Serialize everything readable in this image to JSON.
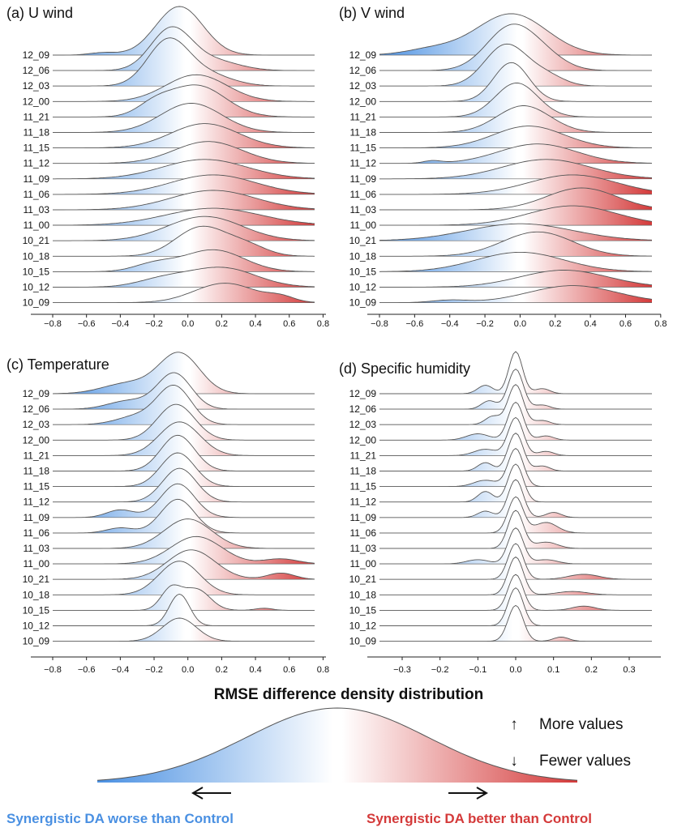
{
  "title": "RMSE difference density distribution",
  "colors": {
    "negative": "#4a90e2",
    "positive": "#d43a3a",
    "neutral": "#ffffff",
    "line": "#555555"
  },
  "chart_data": [
    {
      "panel": "a",
      "type": "ridgeline",
      "title": "(a) U wind",
      "categories": [
        "12_09",
        "12_06",
        "12_03",
        "12_00",
        "11_21",
        "11_18",
        "11_15",
        "11_12",
        "11_09",
        "11_06",
        "11_03",
        "11_00",
        "10_21",
        "10_18",
        "10_15",
        "10_12",
        "10_09"
      ],
      "xlim": [
        -0.8,
        0.75
      ],
      "xticks": [
        "−0.8",
        "−0.6",
        "−0.4",
        "−0.2",
        "0.0",
        "0.2",
        "0.4",
        "0.6",
        "0.8"
      ],
      "xtick_values": [
        -0.8,
        -0.6,
        -0.4,
        -0.2,
        0.0,
        0.2,
        0.4,
        0.6,
        0.8
      ],
      "series": [
        {
          "name": "12_09",
          "peaks": [
            [
              -0.05,
              0.14,
              1.0
            ],
            [
              -0.5,
              0.08,
              0.05
            ]
          ]
        },
        {
          "name": "12_06",
          "peaks": [
            [
              -0.1,
              0.12,
              0.85
            ],
            [
              0.15,
              0.15,
              0.2
            ]
          ]
        },
        {
          "name": "12_03",
          "peaks": [
            [
              -0.12,
              0.12,
              0.9
            ],
            [
              0.1,
              0.15,
              0.25
            ]
          ]
        },
        {
          "name": "12_00",
          "peaks": [
            [
              0.05,
              0.18,
              0.55
            ]
          ]
        },
        {
          "name": "11_21",
          "peaks": [
            [
              0.05,
              0.17,
              0.65
            ],
            [
              -0.2,
              0.1,
              0.2
            ]
          ]
        },
        {
          "name": "11_18",
          "peaks": [
            [
              0.02,
              0.18,
              0.6
            ]
          ]
        },
        {
          "name": "11_15",
          "peaks": [
            [
              0.1,
              0.2,
              0.5
            ]
          ]
        },
        {
          "name": "11_12",
          "peaks": [
            [
              0.12,
              0.2,
              0.45
            ]
          ]
        },
        {
          "name": "11_09",
          "peaks": [
            [
              0.1,
              0.25,
              0.4
            ]
          ]
        },
        {
          "name": "11_06",
          "peaks": [
            [
              0.15,
              0.25,
              0.4
            ]
          ]
        },
        {
          "name": "11_03",
          "peaks": [
            [
              0.15,
              0.25,
              0.4
            ]
          ]
        },
        {
          "name": "11_00",
          "peaks": [
            [
              0.15,
              0.28,
              0.35
            ]
          ]
        },
        {
          "name": "10_21",
          "peaks": [
            [
              0.1,
              0.22,
              0.5
            ]
          ]
        },
        {
          "name": "10_18",
          "peaks": [
            [
              0.08,
              0.15,
              0.6
            ],
            [
              0.35,
              0.12,
              0.2
            ]
          ]
        },
        {
          "name": "10_15",
          "peaks": [
            [
              0.15,
              0.18,
              0.45
            ],
            [
              -0.2,
              0.12,
              0.15
            ]
          ]
        },
        {
          "name": "10_12",
          "peaks": [
            [
              0.2,
              0.2,
              0.4
            ],
            [
              -0.15,
              0.15,
              0.15
            ]
          ]
        },
        {
          "name": "10_09",
          "peaks": [
            [
              0.22,
              0.18,
              0.4
            ],
            [
              0.55,
              0.08,
              0.1
            ]
          ]
        }
      ]
    },
    {
      "panel": "b",
      "type": "ridgeline",
      "title": "(b) V wind",
      "categories": [
        "12_09",
        "12_06",
        "12_03",
        "12_00",
        "11_21",
        "11_18",
        "11_15",
        "11_12",
        "11_09",
        "11_06",
        "11_03",
        "11_00",
        "10_21",
        "10_18",
        "10_15",
        "10_12",
        "10_09"
      ],
      "xlim": [
        -0.8,
        0.75
      ],
      "xticks": [
        "−0.8",
        "−0.6",
        "−0.4",
        "−0.2",
        "0.0",
        "0.2",
        "0.4",
        "0.6",
        "0.8"
      ],
      "xtick_values": [
        -0.8,
        -0.6,
        -0.4,
        -0.2,
        0.0,
        0.2,
        0.4,
        0.6,
        0.8
      ],
      "series": [
        {
          "name": "12_09",
          "peaks": [
            [
              -0.05,
              0.2,
              0.85
            ],
            [
              -0.5,
              0.15,
              0.12
            ]
          ]
        },
        {
          "name": "12_06",
          "peaks": [
            [
              -0.05,
              0.14,
              0.9
            ],
            [
              0.15,
              0.12,
              0.2
            ]
          ]
        },
        {
          "name": "12_03",
          "peaks": [
            [
              -0.08,
              0.12,
              0.85
            ],
            [
              0.15,
              0.1,
              0.2
            ]
          ]
        },
        {
          "name": "12_00",
          "peaks": [
            [
              -0.05,
              0.1,
              0.8
            ]
          ]
        },
        {
          "name": "11_21",
          "peaks": [
            [
              -0.02,
              0.12,
              0.7
            ]
          ]
        },
        {
          "name": "11_18",
          "peaks": [
            [
              0.02,
              0.15,
              0.55
            ]
          ]
        },
        {
          "name": "11_15",
          "peaks": [
            [
              0.05,
              0.2,
              0.45
            ]
          ]
        },
        {
          "name": "11_12",
          "peaks": [
            [
              0.1,
              0.22,
              0.4
            ],
            [
              -0.5,
              0.05,
              0.05
            ]
          ]
        },
        {
          "name": "11_09",
          "peaks": [
            [
              0.15,
              0.25,
              0.4
            ]
          ]
        },
        {
          "name": "11_06",
          "peaks": [
            [
              0.3,
              0.25,
              0.4
            ]
          ]
        },
        {
          "name": "11_03",
          "peaks": [
            [
              0.35,
              0.2,
              0.45
            ]
          ]
        },
        {
          "name": "11_00",
          "peaks": [
            [
              0.3,
              0.25,
              0.4
            ]
          ]
        },
        {
          "name": "10_21",
          "peaks": [
            [
              0.0,
              0.3,
              0.35
            ]
          ]
        },
        {
          "name": "10_18",
          "peaks": [
            [
              0.1,
              0.2,
              0.5
            ]
          ]
        },
        {
          "name": "10_15",
          "peaks": [
            [
              0.0,
              0.25,
              0.4
            ]
          ]
        },
        {
          "name": "10_12",
          "peaks": [
            [
              0.25,
              0.25,
              0.35
            ]
          ]
        },
        {
          "name": "10_09",
          "peaks": [
            [
              0.3,
              0.25,
              0.35
            ],
            [
              -0.4,
              0.1,
              0.05
            ]
          ]
        }
      ]
    },
    {
      "panel": "c",
      "type": "ridgeline",
      "title": "(c) Temperature",
      "categories": [
        "12_09",
        "12_06",
        "12_03",
        "12_00",
        "11_21",
        "11_18",
        "11_15",
        "11_12",
        "11_09",
        "11_06",
        "11_03",
        "11_00",
        "10_21",
        "10_18",
        "10_15",
        "10_12",
        "10_09"
      ],
      "xlim": [
        -0.8,
        0.75
      ],
      "xticks": [
        "−0.8",
        "−0.6",
        "−0.4",
        "−0.2",
        "0.0",
        "0.2",
        "0.4",
        "0.6",
        "0.8"
      ],
      "xtick_values": [
        -0.8,
        -0.6,
        -0.4,
        -0.2,
        0.0,
        0.2,
        0.4,
        0.6,
        0.8
      ],
      "series": [
        {
          "name": "12_09",
          "peaks": [
            [
              -0.05,
              0.12,
              0.95
            ],
            [
              -0.35,
              0.15,
              0.25
            ]
          ]
        },
        {
          "name": "12_06",
          "peaks": [
            [
              -0.08,
              0.1,
              0.85
            ],
            [
              -0.35,
              0.12,
              0.2
            ]
          ]
        },
        {
          "name": "12_03",
          "peaks": [
            [
              -0.08,
              0.1,
              0.9
            ],
            [
              -0.3,
              0.12,
              0.2
            ]
          ]
        },
        {
          "name": "12_00",
          "peaks": [
            [
              -0.07,
              0.11,
              0.85
            ]
          ]
        },
        {
          "name": "11_21",
          "peaks": [
            [
              -0.05,
              0.12,
              0.8
            ]
          ]
        },
        {
          "name": "11_18",
          "peaks": [
            [
              -0.06,
              0.1,
              0.85
            ]
          ]
        },
        {
          "name": "11_15",
          "peaks": [
            [
              -0.06,
              0.1,
              0.8
            ]
          ]
        },
        {
          "name": "11_12",
          "peaks": [
            [
              -0.05,
              0.1,
              0.8
            ]
          ]
        },
        {
          "name": "11_09",
          "peaks": [
            [
              -0.06,
              0.1,
              0.8
            ],
            [
              -0.4,
              0.08,
              0.18
            ]
          ]
        },
        {
          "name": "11_06",
          "peaks": [
            [
              -0.06,
              0.1,
              0.8
            ],
            [
              -0.4,
              0.08,
              0.12
            ]
          ]
        },
        {
          "name": "11_03",
          "peaks": [
            [
              0.0,
              0.14,
              0.7
            ]
          ]
        },
        {
          "name": "11_00",
          "peaks": [
            [
              0.05,
              0.15,
              0.65
            ],
            [
              0.55,
              0.1,
              0.12
            ]
          ]
        },
        {
          "name": "10_21",
          "peaks": [
            [
              0.02,
              0.14,
              0.7
            ],
            [
              0.55,
              0.08,
              0.15
            ]
          ]
        },
        {
          "name": "10_18",
          "peaks": [
            [
              -0.05,
              0.12,
              0.8
            ]
          ]
        },
        {
          "name": "10_15",
          "peaks": [
            [
              -0.1,
              0.06,
              0.5
            ],
            [
              0.05,
              0.08,
              0.5
            ],
            [
              0.45,
              0.05,
              0.05
            ]
          ]
        },
        {
          "name": "10_12",
          "peaks": [
            [
              -0.05,
              0.06,
              0.75
            ]
          ]
        },
        {
          "name": "10_09",
          "peaks": [
            [
              -0.05,
              0.1,
              0.55
            ]
          ]
        }
      ]
    },
    {
      "panel": "d",
      "type": "ridgeline",
      "title": "(d) Specific humidity",
      "categories": [
        "12_09",
        "12_06",
        "12_03",
        "12_00",
        "11_21",
        "11_18",
        "11_15",
        "11_12",
        "11_09",
        "11_06",
        "11_03",
        "11_00",
        "10_21",
        "10_18",
        "10_15",
        "10_12",
        "10_09"
      ],
      "xlim": [
        -0.36,
        0.36
      ],
      "xticks": [
        "−0.3",
        "−0.2",
        "−0.1",
        "0.0",
        "0.1",
        "0.2",
        "0.3"
      ],
      "xtick_values": [
        -0.3,
        -0.2,
        -0.1,
        0.0,
        0.1,
        0.2,
        0.3
      ],
      "series": [
        {
          "name": "12_09",
          "peaks": [
            [
              0.0,
              0.018,
              1.0
            ],
            [
              -0.08,
              0.02,
              0.2
            ],
            [
              0.07,
              0.02,
              0.12
            ]
          ]
        },
        {
          "name": "12_06",
          "peaks": [
            [
              0.0,
              0.02,
              0.95
            ],
            [
              -0.07,
              0.02,
              0.2
            ],
            [
              0.07,
              0.02,
              0.1
            ]
          ]
        },
        {
          "name": "12_03",
          "peaks": [
            [
              0.0,
              0.02,
              0.95
            ],
            [
              -0.06,
              0.02,
              0.2
            ],
            [
              0.07,
              0.02,
              0.1
            ]
          ]
        },
        {
          "name": "12_00",
          "peaks": [
            [
              0.0,
              0.02,
              0.9
            ],
            [
              -0.1,
              0.03,
              0.15
            ],
            [
              0.08,
              0.02,
              0.1
            ]
          ]
        },
        {
          "name": "11_21",
          "peaks": [
            [
              0.0,
              0.02,
              0.9
            ],
            [
              -0.08,
              0.03,
              0.15
            ],
            [
              0.08,
              0.02,
              0.1
            ]
          ]
        },
        {
          "name": "11_18",
          "peaks": [
            [
              0.0,
              0.02,
              0.9
            ],
            [
              -0.08,
              0.02,
              0.2
            ],
            [
              0.07,
              0.02,
              0.12
            ]
          ]
        },
        {
          "name": "11_15",
          "peaks": [
            [
              0.0,
              0.02,
              0.9
            ],
            [
              -0.08,
              0.03,
              0.15
            ]
          ]
        },
        {
          "name": "11_12",
          "peaks": [
            [
              0.0,
              0.02,
              0.9
            ],
            [
              -0.08,
              0.02,
              0.25
            ]
          ]
        },
        {
          "name": "11_09",
          "peaks": [
            [
              0.0,
              0.02,
              0.9
            ],
            [
              -0.08,
              0.02,
              0.15
            ],
            [
              0.1,
              0.02,
              0.12
            ]
          ]
        },
        {
          "name": "11_06",
          "peaks": [
            [
              0.0,
              0.02,
              0.85
            ],
            [
              0.08,
              0.03,
              0.25
            ]
          ]
        },
        {
          "name": "11_03",
          "peaks": [
            [
              0.0,
              0.02,
              0.9
            ],
            [
              0.08,
              0.03,
              0.15
            ]
          ]
        },
        {
          "name": "11_00",
          "peaks": [
            [
              0.0,
              0.02,
              0.85
            ],
            [
              -0.1,
              0.03,
              0.1
            ],
            [
              0.08,
              0.03,
              0.1
            ]
          ]
        },
        {
          "name": "10_21",
          "peaks": [
            [
              0.0,
              0.02,
              0.85
            ],
            [
              0.18,
              0.04,
              0.12
            ]
          ]
        },
        {
          "name": "10_18",
          "peaks": [
            [
              0.0,
              0.02,
              0.9
            ],
            [
              0.15,
              0.04,
              0.08
            ]
          ]
        },
        {
          "name": "10_15",
          "peaks": [
            [
              0.0,
              0.02,
              0.85
            ],
            [
              0.18,
              0.03,
              0.1
            ]
          ]
        },
        {
          "name": "10_12",
          "peaks": [
            [
              0.0,
              0.02,
              0.9
            ]
          ]
        },
        {
          "name": "10_09",
          "peaks": [
            [
              0.0,
              0.02,
              0.85
            ],
            [
              0.12,
              0.02,
              0.1
            ]
          ]
        }
      ]
    }
  ],
  "legend": {
    "x_label": "RMSE difference density distribution",
    "more": "More values",
    "fewer": "Fewer values",
    "up_arrow": "↑",
    "down_arrow": "↓",
    "left_caption": "Synergistic DA  worse than Control",
    "right_caption": "Synergistic DA better than Control"
  }
}
